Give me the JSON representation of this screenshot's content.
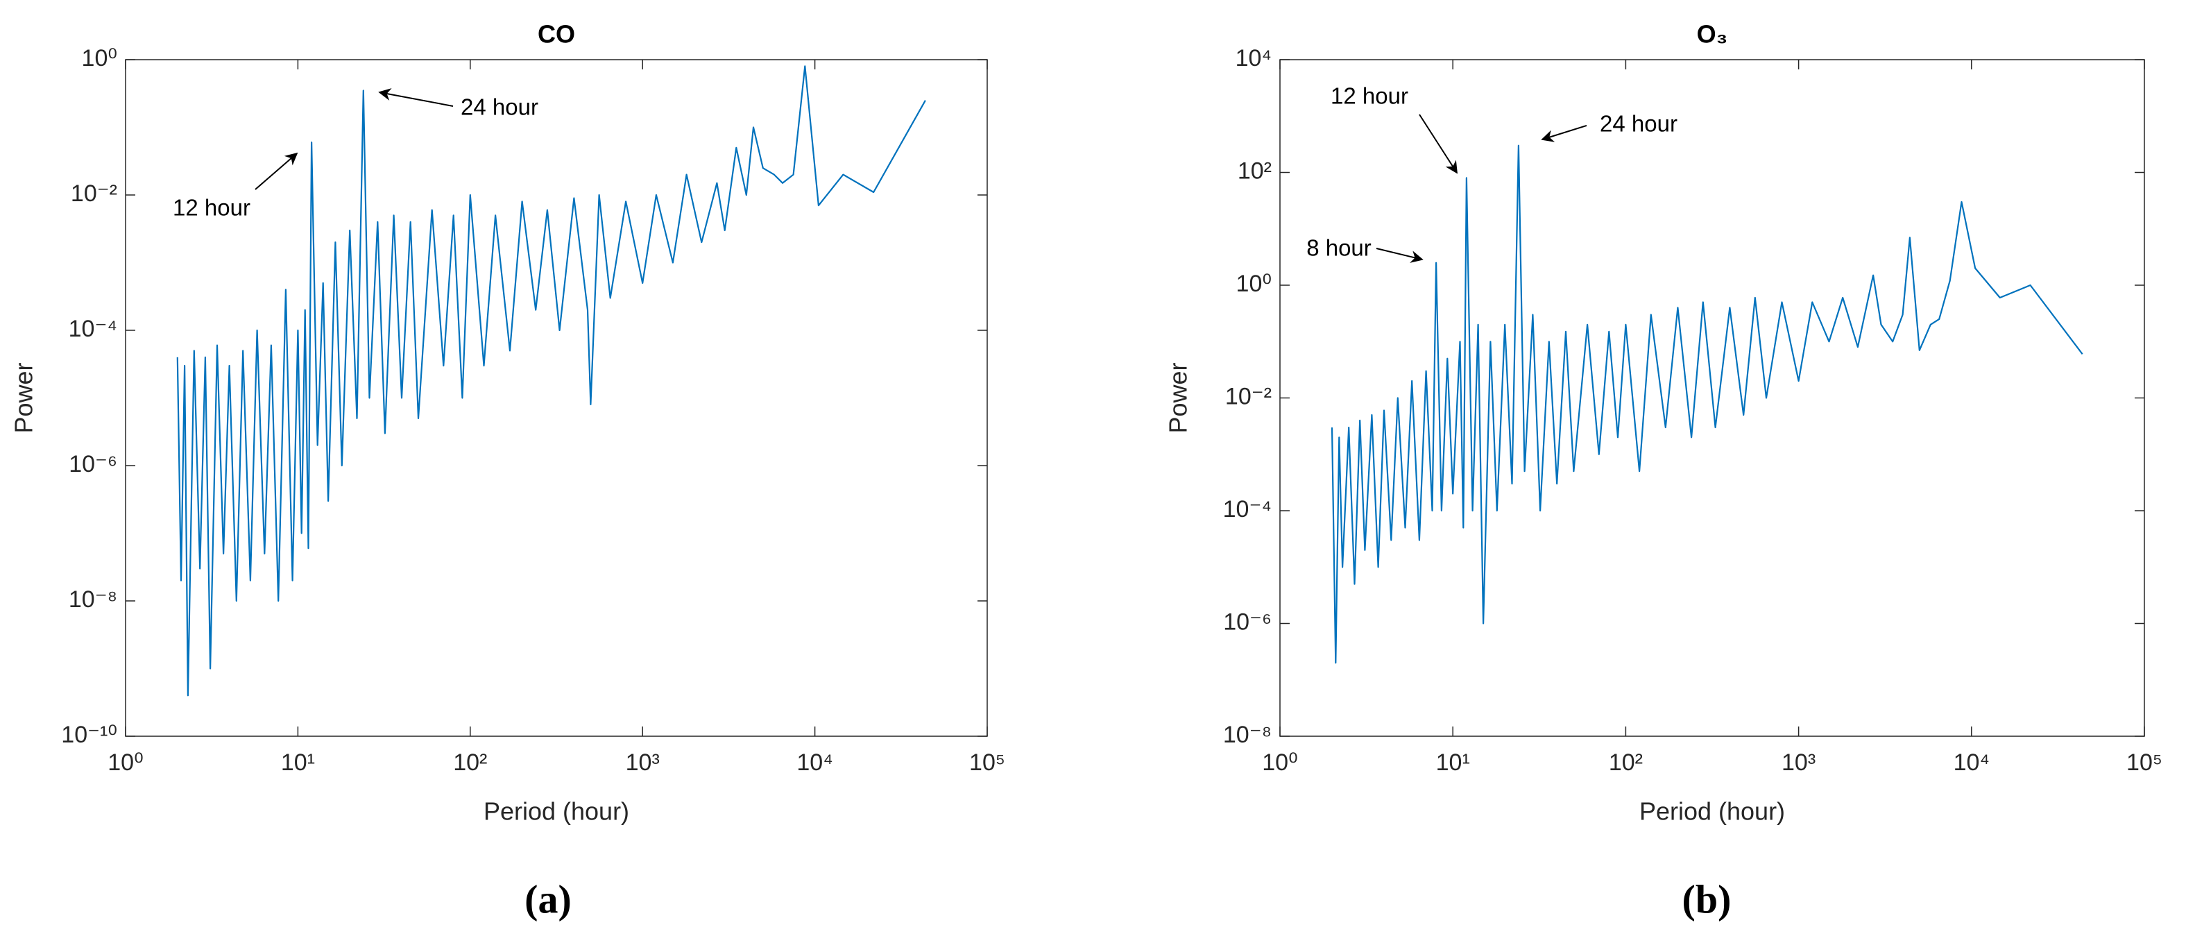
{
  "chart_data": [
    {
      "type": "line",
      "title": "CO",
      "caption": "(a)",
      "xlabel": "Period (hour)",
      "ylabel": "Power",
      "xscale": "log",
      "yscale": "log",
      "color": "#0072bd",
      "xlim": [
        1,
        100000
      ],
      "ylim": [
        1e-10,
        1
      ],
      "xticks": [
        {
          "value": 1,
          "label": "10⁰"
        },
        {
          "value": 10,
          "label": "10¹"
        },
        {
          "value": 100,
          "label": "10²"
        },
        {
          "value": 1000,
          "label": "10³"
        },
        {
          "value": 10000,
          "label": "10⁴"
        },
        {
          "value": 100000,
          "label": "10⁵"
        }
      ],
      "yticks": [
        {
          "value": 1e-10,
          "label": "10⁻¹⁰"
        },
        {
          "value": 1e-08,
          "label": "10⁻⁸"
        },
        {
          "value": 1e-06,
          "label": "10⁻⁶"
        },
        {
          "value": 0.0001,
          "label": "10⁻⁴"
        },
        {
          "value": 0.01,
          "label": "10⁻²"
        },
        {
          "value": 1,
          "label": "10⁰"
        }
      ],
      "x": [
        2,
        2.1,
        2.2,
        2.3,
        2.5,
        2.7,
        2.9,
        3.1,
        3.4,
        3.7,
        4,
        4.4,
        4.8,
        5.3,
        5.8,
        6.4,
        7,
        7.7,
        8.5,
        9.3,
        10,
        10.5,
        11,
        11.5,
        12,
        13,
        14,
        15,
        16.5,
        18,
        20,
        22,
        24,
        26,
        29,
        32,
        36,
        40,
        45,
        50,
        60,
        70,
        80,
        90,
        100,
        120,
        140,
        170,
        200,
        240,
        280,
        330,
        400,
        480,
        500,
        560,
        650,
        800,
        1000,
        1200,
        1500,
        1800,
        2200,
        2700,
        3000,
        3500,
        4000,
        4400,
        5000,
        5800,
        6500,
        7500,
        8760,
        10500,
        14600,
        21900,
        43800
      ],
      "values": [
        4e-05,
        2e-08,
        3e-05,
        4e-10,
        5e-05,
        3e-08,
        4e-05,
        1e-09,
        6e-05,
        5e-08,
        3e-05,
        1e-08,
        5e-05,
        2e-08,
        0.0001,
        5e-08,
        6e-05,
        1e-08,
        0.0004,
        2e-08,
        0.0001,
        1e-07,
        0.0002,
        6e-08,
        0.06,
        2e-06,
        0.0005,
        3e-07,
        0.002,
        1e-06,
        0.003,
        5e-06,
        0.35,
        1e-05,
        0.004,
        3e-06,
        0.005,
        1e-05,
        0.004,
        5e-06,
        0.006,
        3e-05,
        0.005,
        1e-05,
        0.01,
        3e-05,
        0.005,
        5e-05,
        0.008,
        0.0002,
        0.006,
        0.0001,
        0.009,
        0.0002,
        8e-06,
        0.01,
        0.0003,
        0.008,
        0.0005,
        0.01,
        0.001,
        0.02,
        0.002,
        0.015,
        0.003,
        0.05,
        0.01,
        0.1,
        0.025,
        0.02,
        0.015,
        0.02,
        0.8,
        0.007,
        0.02,
        0.011,
        0.25
      ],
      "annotations": [
        "12 hour",
        "24 hour"
      ]
    },
    {
      "type": "line",
      "title": "O₃",
      "caption": "(b)",
      "xlabel": "Period (hour)",
      "ylabel": "Power",
      "xscale": "log",
      "yscale": "log",
      "color": "#0072bd",
      "xlim": [
        1,
        100000
      ],
      "ylim": [
        1e-08,
        10000
      ],
      "xticks": [
        {
          "value": 1,
          "label": "10⁰"
        },
        {
          "value": 10,
          "label": "10¹"
        },
        {
          "value": 100,
          "label": "10²"
        },
        {
          "value": 1000,
          "label": "10³"
        },
        {
          "value": 10000,
          "label": "10⁴"
        },
        {
          "value": 100000,
          "label": "10⁵"
        }
      ],
      "yticks": [
        {
          "value": 1e-08,
          "label": "10⁻⁸"
        },
        {
          "value": 1e-06,
          "label": "10⁻⁶"
        },
        {
          "value": 0.0001,
          "label": "10⁻⁴"
        },
        {
          "value": 0.01,
          "label": "10⁻²"
        },
        {
          "value": 1,
          "label": "10⁰"
        },
        {
          "value": 100,
          "label": "10²"
        },
        {
          "value": 10000,
          "label": "10⁴"
        }
      ],
      "x": [
        2,
        2.1,
        2.2,
        2.3,
        2.5,
        2.7,
        2.9,
        3.1,
        3.4,
        3.7,
        4,
        4.4,
        4.8,
        5.3,
        5.8,
        6.4,
        7,
        7.6,
        8,
        8.6,
        9.3,
        10,
        11,
        11.5,
        12,
        13,
        14,
        15,
        16.5,
        18,
        20,
        22,
        24,
        26,
        29,
        32,
        36,
        40,
        45,
        50,
        60,
        70,
        80,
        90,
        100,
        120,
        140,
        170,
        200,
        240,
        280,
        330,
        400,
        480,
        560,
        650,
        800,
        1000,
        1200,
        1500,
        1800,
        2200,
        2700,
        3000,
        3500,
        4000,
        4400,
        5000,
        5800,
        6500,
        7500,
        8760,
        10500,
        14600,
        21900,
        43800
      ],
      "values": [
        0.003,
        2e-07,
        0.002,
        1e-05,
        0.003,
        5e-06,
        0.004,
        2e-05,
        0.005,
        1e-05,
        0.006,
        3e-05,
        0.01,
        5e-05,
        0.02,
        3e-05,
        0.03,
        0.0001,
        2.5,
        0.0001,
        0.05,
        0.0002,
        0.1,
        5e-05,
        80,
        0.0001,
        0.2,
        1e-06,
        0.1,
        0.0001,
        0.2,
        0.0003,
        300,
        0.0005,
        0.3,
        0.0001,
        0.1,
        0.0003,
        0.15,
        0.0005,
        0.2,
        0.001,
        0.15,
        0.002,
        0.2,
        0.0005,
        0.3,
        0.003,
        0.4,
        0.002,
        0.5,
        0.003,
        0.4,
        0.005,
        0.6,
        0.01,
        0.5,
        0.02,
        0.5,
        0.1,
        0.6,
        0.08,
        1.5,
        0.2,
        0.1,
        0.3,
        7,
        0.07,
        0.2,
        0.25,
        1.2,
        30,
        2,
        0.6,
        1,
        0.06
      ],
      "annotations": [
        "12 hour",
        "24 hour",
        "8 hour"
      ]
    }
  ]
}
